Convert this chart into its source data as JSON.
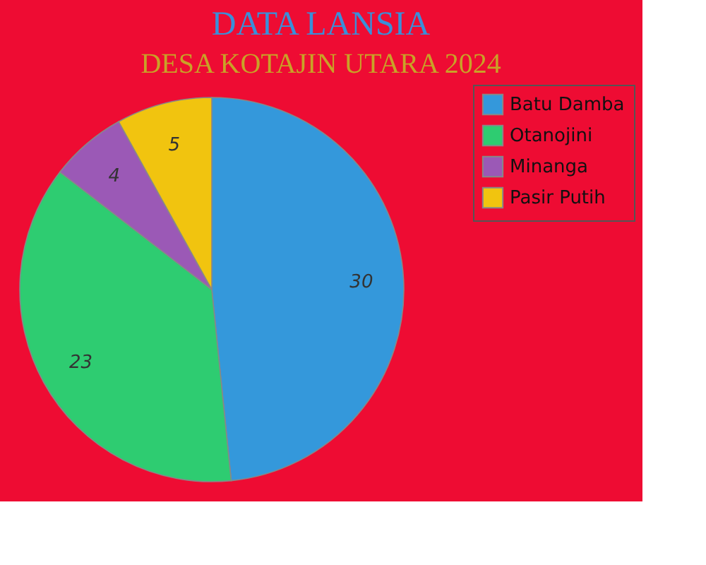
{
  "chart_data": {
    "type": "pie",
    "title": "DATA LANSIA",
    "subtitle": "DESA KOTAJIN UTARA 2024",
    "categories": [
      "Batu Damba",
      "Otanojini",
      "Minanga",
      "Pasir Putih"
    ],
    "values": [
      30,
      23,
      4,
      5
    ],
    "colors": [
      "#3498db",
      "#2ecc71",
      "#9b59b6",
      "#f1c40f"
    ],
    "data_labels": true,
    "legend": "right"
  }
}
